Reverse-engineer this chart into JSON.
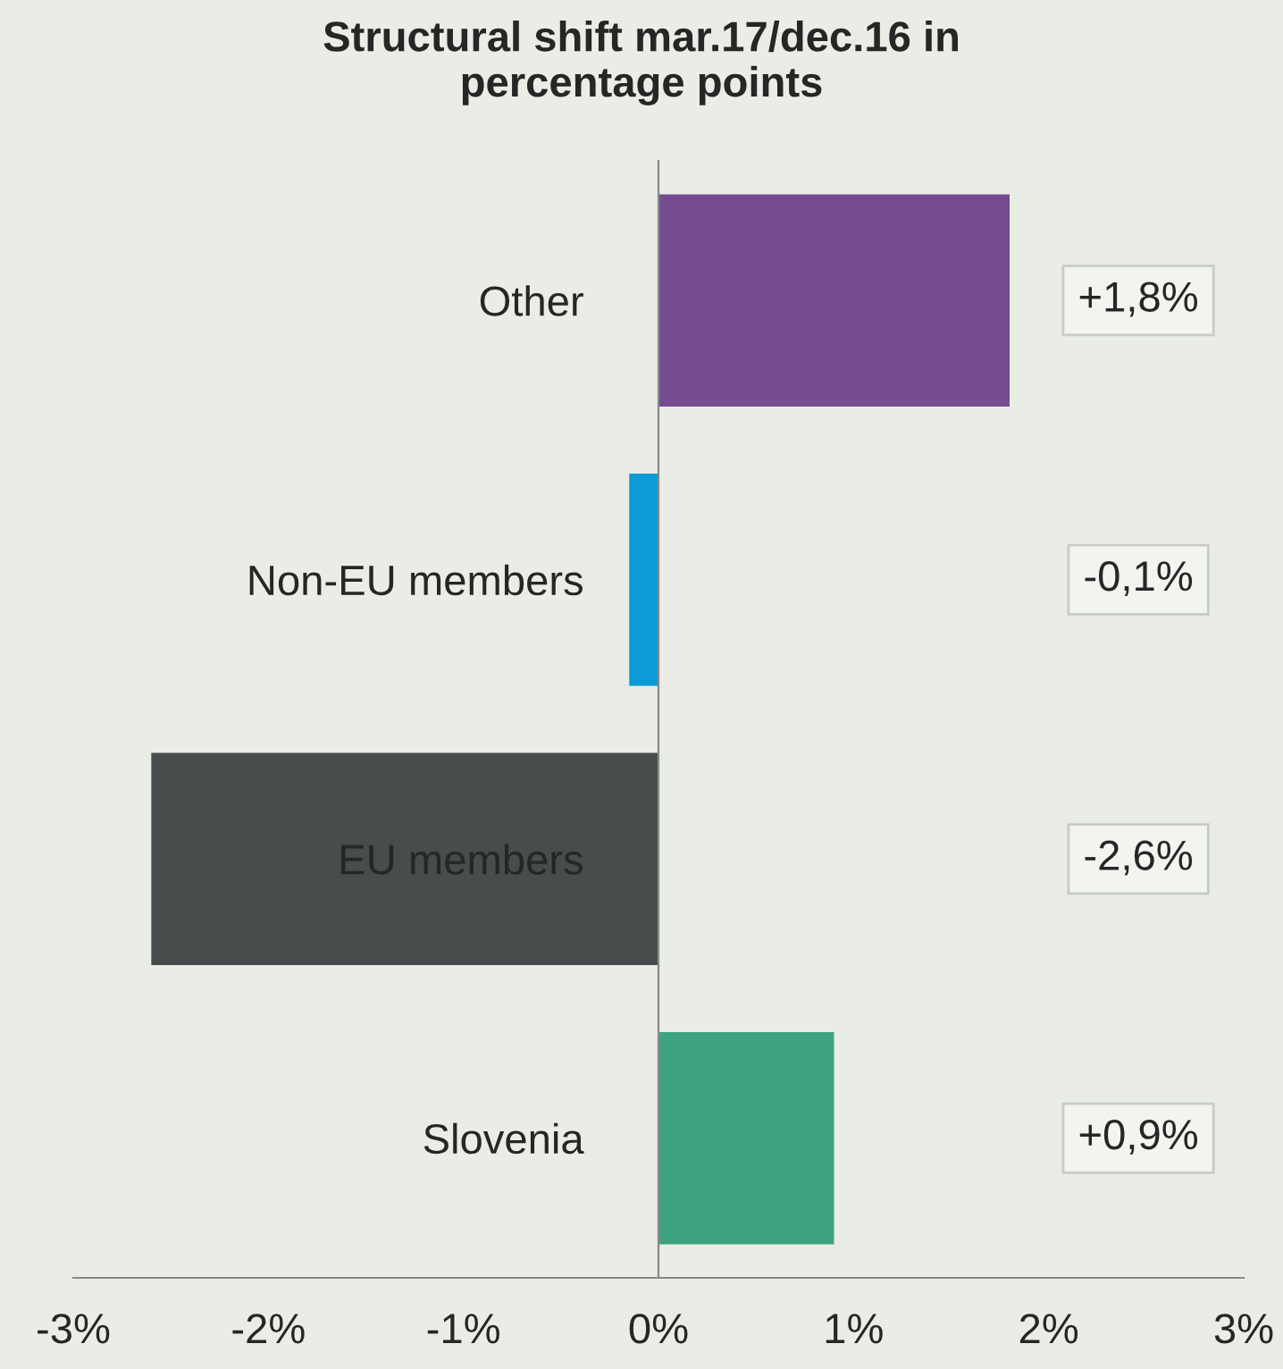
{
  "chart_data": {
    "type": "bar",
    "orientation": "horizontal",
    "title": "Structural shift mar.17/dec.16 in\npercentage points",
    "categories": [
      "Other",
      "Non-EU members",
      "EU members",
      "Slovenia"
    ],
    "values": [
      1.8,
      -0.15,
      -2.6,
      0.9
    ],
    "colors": [
      "#764c8f",
      "#0b9bd6",
      "#474c4c",
      "#3ea381"
    ],
    "value_labels": [
      "+1,8%",
      "-0,1%",
      "-2,6%",
      "+0,9%"
    ],
    "xlim": [
      -3,
      3
    ],
    "xticks": [
      {
        "value": -3,
        "label": "-3%"
      },
      {
        "value": -2,
        "label": "-2%"
      },
      {
        "value": -1,
        "label": "-1%"
      },
      {
        "value": 0,
        "label": "0%"
      },
      {
        "value": 1,
        "label": "1%"
      },
      {
        "value": 2,
        "label": "2%"
      },
      {
        "value": 3,
        "label": "3%"
      }
    ],
    "grid": false,
    "legend": false
  }
}
